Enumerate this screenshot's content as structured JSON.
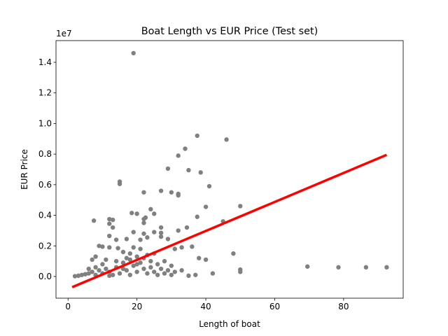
{
  "chart_data": {
    "type": "scatter",
    "title": "Boat Length vs EUR Price (Test set)",
    "xlabel": "Length of boat",
    "ylabel": "EUR Price",
    "y_offset_label": "1e7",
    "xlim": [
      -3.5,
      97.3
    ],
    "xticks": [
      0,
      20,
      40,
      60,
      80
    ],
    "ylim": [
      -1420000,
      15420000
    ],
    "yticks": [
      {
        "value": 0,
        "label": "0.0"
      },
      {
        "value": 2000000,
        "label": "0.2"
      },
      {
        "value": 4000000,
        "label": "0.4"
      },
      {
        "value": 6000000,
        "label": "0.6"
      },
      {
        "value": 8000000,
        "label": "0.8"
      },
      {
        "value": 10000000,
        "label": "1.0"
      },
      {
        "value": 12000000,
        "label": "1.2"
      },
      {
        "value": 14000000,
        "label": "1.4"
      }
    ],
    "grid": false,
    "series": [
      {
        "type": "scatter",
        "color": "#808080",
        "x": [
          19,
          37.5,
          46,
          34,
          32,
          29,
          35,
          38.5,
          15,
          15,
          41,
          27,
          30,
          22,
          32,
          32,
          40,
          50,
          24,
          18.5,
          20,
          25,
          22.5,
          22,
          12,
          13,
          7.5,
          37.5,
          45,
          22,
          12,
          13,
          27,
          34.5,
          32,
          19,
          25,
          27,
          22,
          12,
          17,
          14,
          27,
          23,
          29,
          21,
          9,
          10,
          12,
          14.5,
          31,
          33,
          36,
          48,
          38,
          40,
          42,
          35,
          37,
          50,
          50,
          69.5,
          78.5,
          86.5,
          92.5,
          25,
          28,
          30,
          33,
          7,
          8,
          11,
          16,
          18,
          20,
          22,
          24,
          26,
          2,
          3,
          4,
          5,
          6,
          7,
          8,
          9,
          10,
          11,
          12,
          13,
          14,
          15,
          16,
          17,
          18,
          19,
          20,
          21,
          22,
          23,
          24,
          25,
          26,
          27,
          28,
          29,
          30,
          31,
          6,
          10,
          14,
          18,
          20,
          16,
          12,
          8,
          23,
          21,
          19,
          17
        ],
        "values": [
          14600000,
          9200000,
          8950000,
          8350000,
          7900000,
          7050000,
          6950000,
          6800000,
          6200000,
          6050000,
          5900000,
          5600000,
          5500000,
          5500000,
          5400000,
          5300000,
          4550000,
          4600000,
          4400000,
          4150000,
          4100000,
          4100000,
          3850000,
          3750000,
          3750000,
          3700000,
          3650000,
          3900000,
          3600000,
          3500000,
          3450000,
          3200000,
          3200000,
          3200000,
          3000000,
          2900000,
          2900000,
          2850000,
          2800000,
          2650000,
          2450000,
          2400000,
          2600000,
          2550000,
          2450000,
          2400000,
          2000000,
          1950000,
          1900000,
          1850000,
          1800000,
          1900000,
          1950000,
          1500000,
          1200000,
          1100000,
          200000,
          50000,
          100000,
          450000,
          300000,
          650000,
          600000,
          600000,
          600000,
          1500000,
          1000000,
          700000,
          400000,
          1100000,
          1300000,
          1100000,
          1600000,
          1500000,
          1300000,
          1200000,
          1000000,
          800000,
          20000,
          50000,
          100000,
          150000,
          200000,
          300000,
          100000,
          400000,
          200000,
          500000,
          300000,
          100000,
          600000,
          200000,
          900000,
          400000,
          100000,
          700000,
          300000,
          900000,
          500000,
          200000,
          600000,
          300000,
          100000,
          500000,
          200000,
          400000,
          100000,
          300000,
          500000,
          800000,
          1000000,
          1100000,
          800000,
          500000,
          50000,
          600000,
          1400000,
          1800000,
          1900000,
          1200000
        ]
      },
      {
        "type": "line",
        "color": "#ff0000",
        "x": [
          1.2,
          92.5
        ],
        "values": [
          -700000,
          7950000
        ]
      }
    ]
  }
}
